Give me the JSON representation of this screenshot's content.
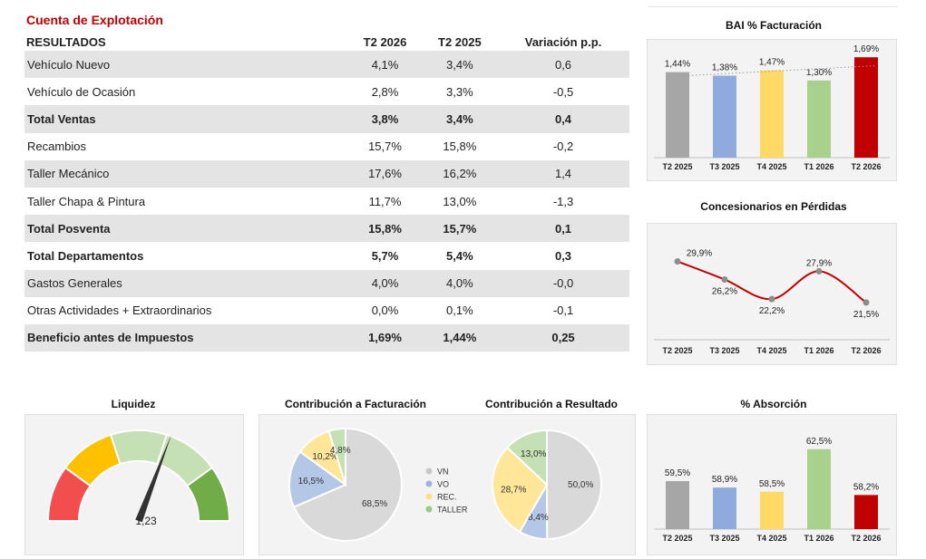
{
  "section_title": "Cuenta de Explotación",
  "table": {
    "headers": [
      "RESULTADOS",
      "T2 2026",
      "T2 2025",
      "Variación p.p."
    ],
    "rows": [
      {
        "label": "Vehículo Nuevo",
        "t2_2026": "4,1%",
        "t2_2025": "3,4%",
        "var": "0,6",
        "total": false
      },
      {
        "label": "Vehículo de Ocasión",
        "t2_2026": "2,8%",
        "t2_2025": "3,3%",
        "var": "-0,5",
        "total": false
      },
      {
        "label": "Total Ventas",
        "t2_2026": "3,8%",
        "t2_2025": "3,4%",
        "var": "0,4",
        "total": true
      },
      {
        "label": "Recambios",
        "t2_2026": "15,7%",
        "t2_2025": "15,8%",
        "var": "-0,2",
        "total": false
      },
      {
        "label": "Taller Mecánico",
        "t2_2026": "17,6%",
        "t2_2025": "16,2%",
        "var": "1,4",
        "total": false
      },
      {
        "label": "Taller Chapa & Pintura",
        "t2_2026": "11,7%",
        "t2_2025": "13,0%",
        "var": "-1,3",
        "total": false
      },
      {
        "label": "Total Posventa",
        "t2_2026": "15,8%",
        "t2_2025": "15,7%",
        "var": "0,1",
        "total": true
      },
      {
        "label": "Total Departamentos",
        "t2_2026": "5,7%",
        "t2_2025": "5,4%",
        "var": "0,3",
        "total": true
      },
      {
        "label": "Gastos Generales",
        "t2_2026": "4,0%",
        "t2_2025": "4,0%",
        "var": "-0,0",
        "total": false
      },
      {
        "label": "Otras Actividades + Extraordinarios",
        "t2_2026": "0,0%",
        "t2_2025": "0,1%",
        "var": "-0,1",
        "total": false
      },
      {
        "label": "Beneficio antes de Impuestos",
        "t2_2026": "1,69%",
        "t2_2025": "1,44%",
        "var": "0,25",
        "total": true
      }
    ]
  },
  "chart_data": [
    {
      "id": "bai",
      "type": "bar",
      "title": "BAI % Facturación",
      "categories": [
        "T2 2025",
        "T3 2025",
        "T4 2025",
        "T1 2026",
        "T2 2026"
      ],
      "values": [
        1.44,
        1.38,
        1.47,
        1.3,
        1.69
      ],
      "labels": [
        "1,44%",
        "1,38%",
        "1,47%",
        "1,30%",
        "1,69%"
      ],
      "colors": [
        "#a6a6a6",
        "#8faadc",
        "#ffd966",
        "#a9d18e",
        "#c00000"
      ],
      "trendline": true,
      "ylim": [
        0,
        1.8
      ]
    },
    {
      "id": "perdidas",
      "type": "line",
      "title": "Concesionarios en Pérdidas",
      "categories": [
        "T2 2025",
        "T3 2025",
        "T4 2025",
        "T1 2026",
        "T2 2026"
      ],
      "values": [
        29.9,
        26.2,
        22.2,
        27.9,
        21.5
      ],
      "labels": [
        "29,9%",
        "26,2%",
        "22,2%",
        "27,9%",
        "21,5%"
      ],
      "line_color": "#c00000",
      "marker_color": "#8c8c8c",
      "ylim": [
        15,
        35
      ]
    },
    {
      "id": "liquidez",
      "type": "gauge",
      "title": "Liquidez",
      "value": 1.23,
      "value_label": "1,23",
      "range": [
        0,
        2
      ],
      "band_colors": [
        "#f24e4e",
        "#ffc000",
        "#c5e0b4",
        "#c5e0b4",
        "#70ad47"
      ]
    },
    {
      "id": "contrib_fact",
      "type": "pie",
      "title": "Contribución a Facturación",
      "slices": [
        {
          "name": "VN",
          "value": 68.5,
          "label": "68,5%",
          "color": "#d9d9d9"
        },
        {
          "name": "VO",
          "value": 16.5,
          "label": "16,5%",
          "color": "#b4c7e7"
        },
        {
          "name": "REC.",
          "value": 10.2,
          "label": "10,2%",
          "color": "#ffe699"
        },
        {
          "name": "TALLER",
          "value": 4.8,
          "label": "4,8%",
          "color": "#c5e0b4"
        }
      ]
    },
    {
      "id": "contrib_res",
      "type": "pie",
      "title": "Contribución a Resultado",
      "slices": [
        {
          "name": "VN",
          "value": 50.0,
          "label": "50,0%",
          "color": "#d9d9d9"
        },
        {
          "name": "VO",
          "value": 8.4,
          "label": "8,4%",
          "color": "#b4c7e7"
        },
        {
          "name": "REC.",
          "value": 28.7,
          "label": "28,7%",
          "color": "#ffe699"
        },
        {
          "name": "TALLER",
          "value": 13.0,
          "label": "13,0%",
          "color": "#c5e0b4"
        }
      ]
    },
    {
      "id": "absorcion",
      "type": "bar",
      "title": "% Absorción",
      "categories": [
        "T2 2025",
        "T3 2025",
        "T4 2025",
        "T1 2026",
        "T2 2026"
      ],
      "values": [
        59.5,
        58.9,
        58.5,
        62.5,
        58.2
      ],
      "labels": [
        "59,5%",
        "58,9%",
        "58,5%",
        "62,5%",
        "58,2%"
      ],
      "colors": [
        "#a6a6a6",
        "#8faadc",
        "#ffd966",
        "#a9d18e",
        "#c00000"
      ],
      "ylim": [
        55,
        63.5
      ]
    }
  ],
  "legend": [
    {
      "name": "VN",
      "color": "#c8c8c8"
    },
    {
      "name": "VO",
      "color": "#9db4de"
    },
    {
      "name": "REC.",
      "color": "#ffe07a"
    },
    {
      "name": "TALLER",
      "color": "#8fd07a"
    }
  ]
}
